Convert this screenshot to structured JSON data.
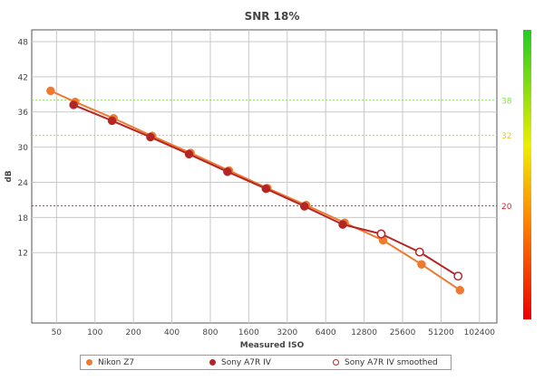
{
  "chart_data": {
    "type": "line",
    "title": "SNR 18%",
    "xlabel": "Measured ISO",
    "ylabel": "dB",
    "x_scale": "log2",
    "xlim": [
      32,
      140000
    ],
    "ylim": [
      0,
      50
    ],
    "x_ticks": [
      50,
      100,
      200,
      400,
      800,
      1600,
      3200,
      6400,
      12800,
      25600,
      51200,
      102400
    ],
    "x_tick_labels": [
      "50",
      "100",
      "200",
      "400",
      "800",
      "1600",
      "3200",
      "6400",
      "12800",
      "25600",
      "51200",
      "102400"
    ],
    "y_ticks": [
      12,
      18,
      24,
      30,
      36,
      42,
      48
    ],
    "y_tick_labels": [
      "12",
      "18",
      "24",
      "30",
      "36",
      "42",
      "48"
    ],
    "reference_lines": [
      {
        "value": 38,
        "label": "38",
        "color": "#88dd55"
      },
      {
        "value": 32,
        "label": "32",
        "color": "#ddcc22"
      },
      {
        "value": 20,
        "label": "20",
        "color": "#dd2222"
      }
    ],
    "color_scale": [
      "#22cc22",
      "#eeee00",
      "#ff8800",
      "#ee0000"
    ],
    "series": [
      {
        "name": "Nikon Z7",
        "color": "#ee7a30",
        "marker": "filled",
        "points": [
          {
            "iso": 45,
            "db": 39.6
          },
          {
            "iso": 70,
            "db": 37.7
          },
          {
            "iso": 140,
            "db": 34.9
          },
          {
            "iso": 280,
            "db": 31.9
          },
          {
            "iso": 560,
            "db": 29.0
          },
          {
            "iso": 1120,
            "db": 26.0
          },
          {
            "iso": 2240,
            "db": 23.0
          },
          {
            "iso": 4500,
            "db": 20.1
          },
          {
            "iso": 9000,
            "db": 17.1
          },
          {
            "iso": 18000,
            "db": 14.1
          },
          {
            "iso": 36000,
            "db": 10.0
          },
          {
            "iso": 72000,
            "db": 5.6
          }
        ]
      },
      {
        "name": "Sony A7R IV",
        "color": "#b42525",
        "marker": "filled",
        "points": [
          {
            "iso": 68,
            "db": 37.2
          },
          {
            "iso": 136,
            "db": 34.5
          },
          {
            "iso": 272,
            "db": 31.7
          },
          {
            "iso": 545,
            "db": 28.8
          },
          {
            "iso": 1090,
            "db": 25.8
          },
          {
            "iso": 2180,
            "db": 22.9
          },
          {
            "iso": 4360,
            "db": 19.9
          },
          {
            "iso": 8700,
            "db": 16.8
          }
        ]
      },
      {
        "name": "Sony A7R IV smoothed",
        "color": "#b42525",
        "marker": "hollow",
        "connect_from_previous_series": true,
        "points": [
          {
            "iso": 17400,
            "db": 15.2
          },
          {
            "iso": 34800,
            "db": 12.1
          },
          {
            "iso": 69600,
            "db": 8.0
          }
        ]
      }
    ]
  },
  "legend": {
    "nikon_label": "Nikon Z7",
    "sony_label": "Sony A7R IV",
    "sony_smoothed_label": "Sony A7R IV smoothed"
  }
}
